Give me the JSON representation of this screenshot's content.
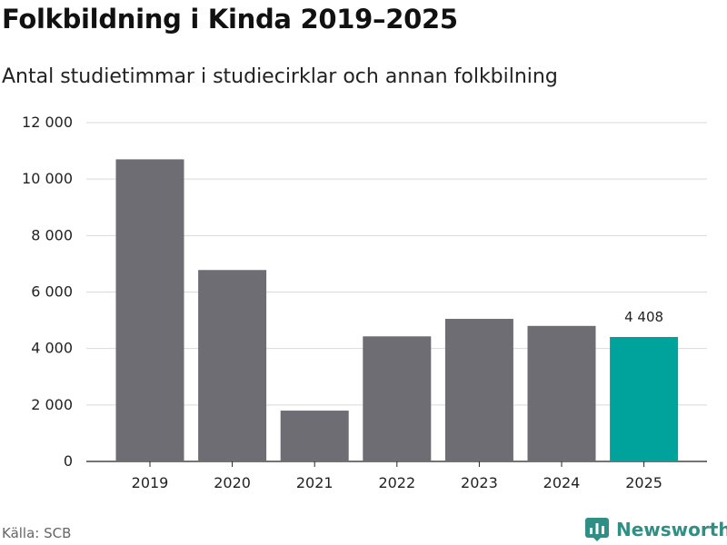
{
  "header": {
    "title": "Folkbildning i Kinda 2019–2025",
    "subtitle": "Antal studietimmar i studiecirklar och annan folkbilning"
  },
  "footer": {
    "source": "Källa: SCB",
    "brand": "Newsworthy"
  },
  "colors": {
    "bar": "#6e6d73",
    "highlight": "#00a39b",
    "grid": "#d9d9d9",
    "brand": "#2f8f85"
  },
  "icons": {
    "brand_logo": "newsworthy-logo-icon"
  },
  "chart_data": {
    "type": "bar",
    "title": "Folkbildning i Kinda 2019–2025",
    "subtitle": "Antal studietimmar i studiecirklar och annan folkbilning",
    "xlabel": "",
    "ylabel": "",
    "categories": [
      "2019",
      "2020",
      "2021",
      "2022",
      "2023",
      "2024",
      "2025"
    ],
    "values": [
      10700,
      6780,
      1800,
      4430,
      5050,
      4800,
      4408
    ],
    "highlight_index": 6,
    "data_labels": [
      {
        "index": 6,
        "text": "4 408"
      }
    ],
    "ylim": [
      0,
      12000
    ],
    "yticks": [
      0,
      2000,
      4000,
      6000,
      8000,
      10000,
      12000
    ],
    "ytick_labels": [
      "0",
      "2 000",
      "4 000",
      "6 000",
      "8 000",
      "10 000",
      "12 000"
    ],
    "grid": true,
    "legend": "none"
  }
}
